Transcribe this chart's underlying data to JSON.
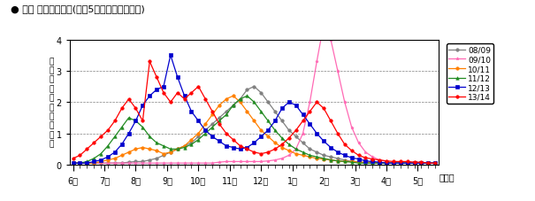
{
  "title": "● 県内 週別発生動向(過去5シーズンとの比較)",
  "ylabel_chars": [
    "定",
    "点",
    "当",
    "た",
    "り",
    "患",
    "者",
    "報",
    "告",
    "数"
  ],
  "xlabel_note": "（週）",
  "month_labels": [
    "6月",
    "7月",
    "8月",
    "9月",
    "10月",
    "11月",
    "12月",
    "1月",
    "2月",
    "3月",
    "4月",
    "5月"
  ],
  "month_week_positions": [
    0,
    4.5,
    9,
    13.5,
    18,
    22.5,
    27,
    31.5,
    36,
    40.5,
    45,
    49.5
  ],
  "ylim": [
    0,
    4
  ],
  "yticks": [
    0,
    1,
    2,
    3,
    4
  ],
  "background_color": "#ffffff",
  "legend_order": [
    "08/09",
    "09/10",
    "10/11",
    "11/12",
    "12/13",
    "13/14"
  ],
  "colors": {
    "08/09": "#808080",
    "09/10": "#ff69b4",
    "10/11": "#ff7f00",
    "11/12": "#228B22",
    "12/13": "#0000cd",
    "13/14": "#ff0000"
  },
  "markers": {
    "08/09": "o",
    "09/10": "*",
    "10/11": "o",
    "11/12": "^",
    "12/13": "s",
    "13/14": "o"
  },
  "num_weeks": 53,
  "series": {
    "08/09": [
      0.05,
      0.05,
      0.05,
      0.05,
      0.05,
      0.05,
      0.05,
      0.05,
      0.08,
      0.1,
      0.1,
      0.15,
      0.2,
      0.3,
      0.4,
      0.5,
      0.6,
      0.7,
      0.9,
      1.1,
      1.3,
      1.5,
      1.7,
      1.9,
      2.1,
      2.4,
      2.5,
      2.3,
      2.0,
      1.7,
      1.4,
      1.1,
      0.9,
      0.7,
      0.5,
      0.4,
      0.3,
      0.25,
      0.2,
      0.15,
      0.1,
      0.1,
      0.05,
      0.05,
      0.05,
      0.05,
      0.05,
      0.05,
      0.05,
      0.05,
      0.05,
      0.05,
      0.05
    ],
    "09/10": [
      0.05,
      0.05,
      0.05,
      0.05,
      0.05,
      0.05,
      0.05,
      0.05,
      0.05,
      0.05,
      0.05,
      0.05,
      0.05,
      0.05,
      0.05,
      0.05,
      0.05,
      0.05,
      0.05,
      0.05,
      0.05,
      0.08,
      0.1,
      0.1,
      0.1,
      0.1,
      0.1,
      0.1,
      0.12,
      0.15,
      0.2,
      0.3,
      0.5,
      1.0,
      2.0,
      3.3,
      4.5,
      4.0,
      3.0,
      2.0,
      1.2,
      0.7,
      0.4,
      0.25,
      0.15,
      0.1,
      0.05,
      0.05,
      0.05,
      0.05,
      0.05,
      0.05,
      0.05
    ],
    "10/11": [
      0.05,
      0.05,
      0.05,
      0.05,
      0.1,
      0.15,
      0.2,
      0.3,
      0.4,
      0.5,
      0.55,
      0.5,
      0.45,
      0.35,
      0.4,
      0.5,
      0.6,
      0.8,
      1.0,
      1.3,
      1.6,
      1.9,
      2.1,
      2.2,
      2.0,
      1.7,
      1.4,
      1.1,
      0.9,
      0.7,
      0.55,
      0.45,
      0.35,
      0.3,
      0.25,
      0.2,
      0.18,
      0.15,
      0.12,
      0.1,
      0.1,
      0.08,
      0.08,
      0.08,
      0.05,
      0.05,
      0.05,
      0.05,
      0.05,
      0.05,
      0.05,
      0.05,
      0.05
    ],
    "11/12": [
      0.05,
      0.05,
      0.1,
      0.2,
      0.35,
      0.6,
      0.9,
      1.2,
      1.5,
      1.4,
      1.2,
      0.9,
      0.7,
      0.6,
      0.5,
      0.5,
      0.55,
      0.65,
      0.8,
      1.0,
      1.2,
      1.4,
      1.6,
      1.9,
      2.1,
      2.2,
      2.0,
      1.7,
      1.4,
      1.1,
      0.85,
      0.65,
      0.5,
      0.4,
      0.3,
      0.25,
      0.2,
      0.15,
      0.12,
      0.1,
      0.08,
      0.05,
      0.05,
      0.05,
      0.05,
      0.05,
      0.05,
      0.05,
      0.05,
      0.05,
      0.05,
      0.05,
      0.05
    ],
    "12/13": [
      0.05,
      0.05,
      0.05,
      0.1,
      0.15,
      0.25,
      0.4,
      0.65,
      1.0,
      1.4,
      1.9,
      2.2,
      2.4,
      2.5,
      3.5,
      2.8,
      2.2,
      1.7,
      1.4,
      1.1,
      0.9,
      0.75,
      0.6,
      0.55,
      0.5,
      0.55,
      0.7,
      0.9,
      1.1,
      1.4,
      1.8,
      2.0,
      1.9,
      1.6,
      1.3,
      1.0,
      0.75,
      0.55,
      0.4,
      0.3,
      0.22,
      0.18,
      0.12,
      0.1,
      0.08,
      0.05,
      0.05,
      0.05,
      0.05,
      0.05,
      0.05,
      0.05,
      0.05
    ],
    "13/14": [
      0.2,
      0.3,
      0.5,
      0.7,
      0.9,
      1.1,
      1.4,
      1.8,
      2.1,
      1.8,
      1.4,
      3.3,
      2.8,
      2.3,
      2.0,
      2.3,
      2.1,
      2.3,
      2.5,
      2.1,
      1.7,
      1.3,
      1.0,
      0.8,
      0.6,
      0.5,
      0.4,
      0.35,
      0.4,
      0.5,
      0.65,
      0.85,
      1.1,
      1.4,
      1.7,
      2.0,
      1.8,
      1.4,
      1.0,
      0.65,
      0.45,
      0.3,
      0.22,
      0.18,
      0.15,
      0.12,
      0.1,
      0.1,
      0.1,
      0.08,
      0.08,
      0.05,
      0.05
    ]
  }
}
